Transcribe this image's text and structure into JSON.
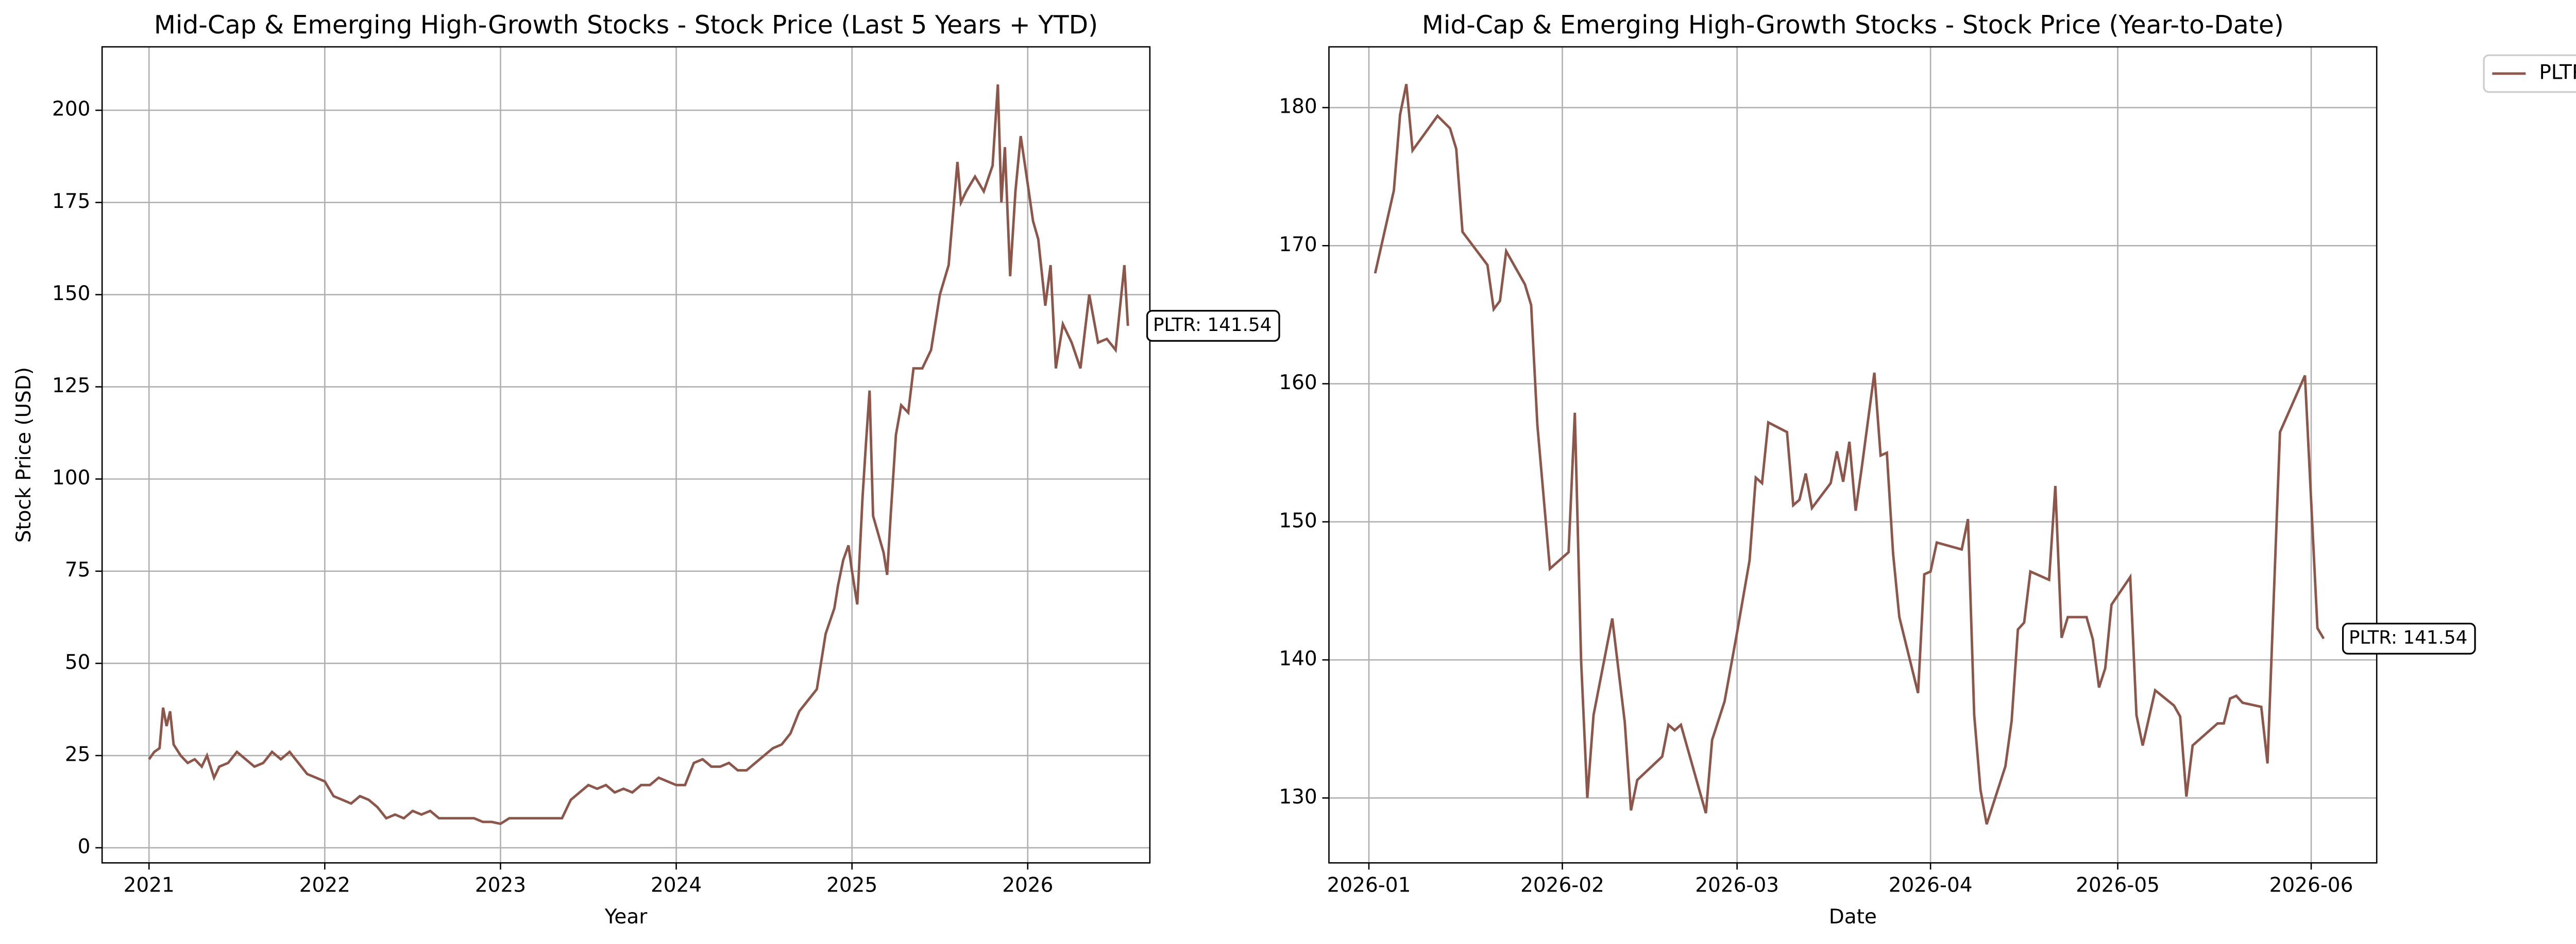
{
  "chart_data": [
    {
      "type": "line",
      "title": "Mid-Cap & Emerging High-Growth Stocks - Stock Price (Last 5 Years + YTD)",
      "x_label": "Year",
      "y_label": "Stock Price (USD)",
      "x": [
        2021.0,
        2021.03,
        2021.06,
        2021.08,
        2021.1,
        2021.12,
        2021.14,
        2021.18,
        2021.22,
        2021.26,
        2021.3,
        2021.33,
        2021.37,
        2021.4,
        2021.45,
        2021.5,
        2021.55,
        2021.6,
        2021.65,
        2021.7,
        2021.75,
        2021.8,
        2021.85,
        2021.9,
        2021.95,
        2022.0,
        2022.05,
        2022.1,
        2022.15,
        2022.2,
        2022.25,
        2022.3,
        2022.35,
        2022.4,
        2022.45,
        2022.5,
        2022.55,
        2022.6,
        2022.65,
        2022.7,
        2022.75,
        2022.8,
        2022.85,
        2022.9,
        2022.95,
        2023.0,
        2023.05,
        2023.1,
        2023.15,
        2023.2,
        2023.3,
        2023.35,
        2023.4,
        2023.45,
        2023.5,
        2023.55,
        2023.6,
        2023.65,
        2023.7,
        2023.75,
        2023.8,
        2023.85,
        2023.9,
        2023.95,
        2024.0,
        2024.05,
        2024.1,
        2024.15,
        2024.2,
        2024.25,
        2024.3,
        2024.35,
        2024.4,
        2024.45,
        2024.5,
        2024.55,
        2024.6,
        2024.65,
        2024.7,
        2024.75,
        2024.8,
        2024.85,
        2024.9,
        2024.92,
        2024.95,
        2024.98,
        2025.0,
        2025.03,
        2025.06,
        2025.08,
        2025.1,
        2025.12,
        2025.15,
        2025.18,
        2025.2,
        2025.22,
        2025.25,
        2025.28,
        2025.32,
        2025.35,
        2025.4,
        2025.45,
        2025.5,
        2025.55,
        2025.6,
        2025.62,
        2025.65,
        2025.7,
        2025.75,
        2025.8,
        2025.83,
        2025.85,
        2025.87,
        2025.9,
        2025.93,
        2025.96,
        2026.0,
        2026.03,
        2026.06,
        2026.1,
        2026.13,
        2026.16,
        2026.2,
        2026.25,
        2026.3,
        2026.35,
        2026.4,
        2026.45,
        2026.5,
        2026.55,
        2026.57
      ],
      "series": [
        {
          "color": "#8c564b",
          "values": [
            24,
            26,
            27,
            38,
            33,
            37,
            28,
            25,
            23,
            24,
            22,
            25,
            19,
            22,
            23,
            26,
            24,
            22,
            23,
            26,
            24,
            26,
            23,
            20,
            19,
            18,
            14,
            13,
            12,
            14,
            13,
            11,
            8,
            9,
            8,
            10,
            9,
            10,
            8,
            8,
            8,
            8,
            8,
            7,
            7,
            6.5,
            8,
            8,
            8,
            8,
            8,
            8,
            13,
            15,
            17,
            16,
            17,
            15,
            16,
            15,
            17,
            17,
            19,
            18,
            17,
            17,
            23,
            24,
            22,
            22,
            23,
            21,
            21,
            23,
            25,
            27,
            28,
            31,
            37,
            40,
            43,
            58,
            65,
            71,
            78,
            82,
            75,
            66,
            95,
            110,
            124,
            90,
            85,
            80,
            74,
            90,
            112,
            120,
            118,
            130,
            130,
            135,
            150,
            158,
            186,
            175,
            178,
            182,
            178,
            185,
            207,
            175,
            190,
            155,
            178,
            193,
            180,
            170,
            165,
            147,
            158,
            130,
            142,
            137,
            130,
            150,
            137,
            138,
            135,
            158,
            141.54
          ]
        }
      ],
      "xlim": [
        2020.733,
        2026.695
      ],
      "xticks": [
        2021,
        2022,
        2023,
        2024,
        2025,
        2026
      ],
      "ylim": [
        -4.1,
        217.2
      ],
      "yticks": [
        0,
        25,
        50,
        75,
        100,
        125,
        150,
        175,
        200
      ],
      "grid": true,
      "annotation": "PLTR: 141.54"
    },
    {
      "type": "line",
      "title": "Mid-Cap & Emerging High-Growth Stocks - Stock Price (Year-to-Date)",
      "x_label": "Date",
      "x": [
        2,
        5,
        6,
        7,
        8,
        12,
        14,
        15,
        16,
        20,
        21,
        22,
        23,
        26,
        27,
        28,
        30,
        33,
        34,
        35,
        36,
        37,
        40,
        42,
        43,
        44,
        48,
        49,
        50,
        51,
        55,
        56,
        58,
        60,
        62,
        63,
        64,
        65,
        68,
        69,
        70,
        71,
        72,
        75,
        76,
        77,
        78,
        79,
        80,
        82,
        83,
        84,
        85,
        86,
        89,
        90,
        91,
        92,
        96,
        97,
        98,
        99,
        100,
        103,
        104,
        105,
        106,
        107,
        110,
        111,
        112,
        113,
        116,
        117,
        118,
        119,
        120,
        123,
        124,
        125,
        127,
        130,
        131,
        132,
        133,
        137,
        138,
        139,
        140,
        141,
        144,
        145,
        147,
        151,
        153,
        154
      ],
      "series": [
        {
          "name": "PLTR",
          "color": "#8c564b",
          "values": [
            168,
            174,
            179.5,
            181.7,
            176.9,
            179.4,
            178.5,
            177,
            171,
            168.6,
            165.4,
            166,
            169.6,
            167.2,
            165.7,
            157,
            146.6,
            147.8,
            157.9,
            140,
            130,
            136,
            143,
            135.5,
            129.1,
            131.3,
            133,
            135.3,
            134.9,
            135.3,
            128.9,
            134.2,
            137,
            142,
            147.2,
            153.2,
            152.8,
            157.2,
            156.5,
            151.2,
            151.6,
            153.5,
            151,
            152.8,
            155.1,
            152.9,
            155.8,
            150.8,
            154,
            160.8,
            154.8,
            155,
            147.7,
            143.1,
            137.6,
            146.2,
            146.4,
            148.5,
            148,
            150.2,
            136,
            130.6,
            128.1,
            132.3,
            135.6,
            142.2,
            142.7,
            146.4,
            145.8,
            152.6,
            141.6,
            143.1,
            143.1,
            141.5,
            138,
            139.4,
            144,
            146,
            136,
            133.8,
            137.8,
            136.7,
            135.9,
            130.1,
            133.8,
            135.4,
            135.4,
            137.2,
            137.4,
            136.9,
            136.6,
            132.5,
            156.5,
            160.6,
            142.3,
            141.54
          ]
        }
      ],
      "xlim": [
        -5.4,
        162.5
      ],
      "xticks": [
        {
          "value": 1,
          "label": "2026-01"
        },
        {
          "value": 32,
          "label": "2026-02"
        },
        {
          "value": 60,
          "label": "2026-03"
        },
        {
          "value": 91,
          "label": "2026-04"
        },
        {
          "value": 121,
          "label": "2026-05"
        },
        {
          "value": 152,
          "label": "2026-06"
        }
      ],
      "ylim": [
        125.3,
        184.4
      ],
      "yticks": [
        130,
        140,
        150,
        160,
        170,
        180
      ],
      "grid": true,
      "legend": "upper right outside",
      "annotation": "PLTR: 141.54"
    }
  ]
}
